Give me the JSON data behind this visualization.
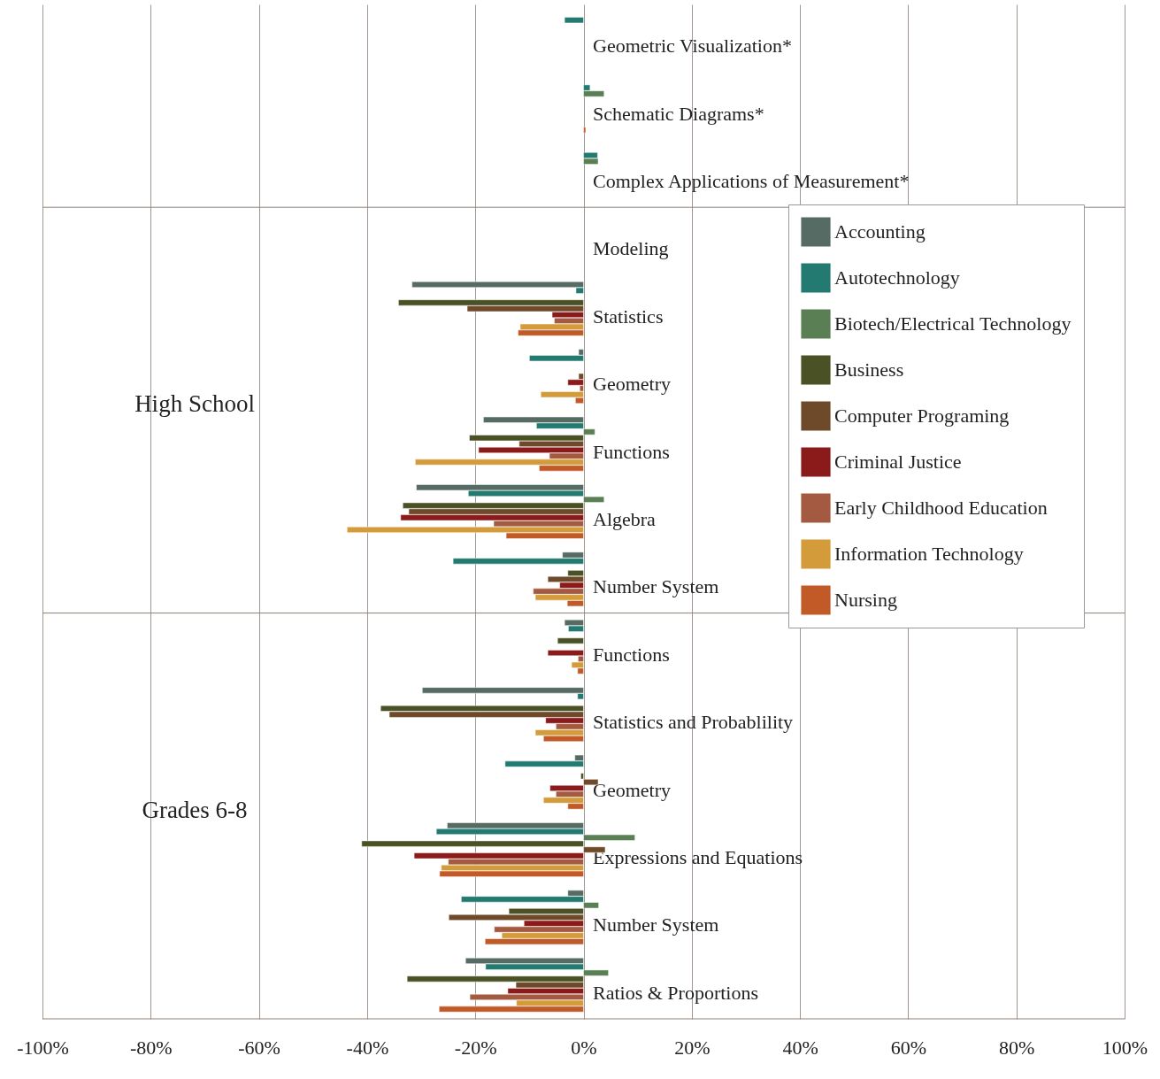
{
  "chart_data": {
    "type": "bar",
    "orientation": "horizontal",
    "categories": [
      "Geometric Visualization*",
      "Schematic Diagrams*",
      "Complex Applications of Measurement*",
      "Modeling",
      "Statistics",
      "Geometry",
      "Functions",
      "Algebra",
      "Number System",
      "Functions",
      "Statistics and Probablility",
      "Geometry",
      "Expressions and Equations",
      "Number System",
      "Ratios & Proportions"
    ],
    "series": [
      {
        "name": "Accounting",
        "color": "#566b63",
        "values": [
          null,
          null,
          null,
          null,
          -31.7,
          -0.9,
          -18.5,
          -30.9,
          -3.9,
          -3.5,
          -29.8,
          -1.6,
          -25.2,
          -2.9,
          -21.8
        ]
      },
      {
        "name": "Autotechnology",
        "color": "#237a70",
        "values": [
          -3.5,
          1.2,
          2.6,
          null,
          -1.4,
          -10.0,
          -8.7,
          -21.3,
          -24.1,
          -2.8,
          -1.1,
          -14.5,
          -27.2,
          -22.6,
          -18.1
        ]
      },
      {
        "name": "Biotech/Electrical Technology",
        "color": "#5a7f55",
        "values": [
          null,
          3.8,
          2.7,
          null,
          null,
          null,
          2.1,
          3.8,
          null,
          null,
          null,
          null,
          9.5,
          2.8,
          4.6
        ]
      },
      {
        "name": "Business",
        "color": "#4a5225",
        "values": [
          null,
          null,
          null,
          null,
          -34.2,
          null,
          -21.1,
          -33.4,
          -2.9,
          -4.8,
          -37.5,
          -0.5,
          -41.0,
          -13.8,
          -32.6
        ]
      },
      {
        "name": "Computer Programing",
        "color": "#6f4a2a",
        "values": [
          null,
          null,
          null,
          null,
          -21.5,
          -0.9,
          -11.9,
          -32.3,
          -6.6,
          null,
          -35.9,
          2.7,
          4.0,
          -24.9,
          -12.5
        ]
      },
      {
        "name": "Criminal Justice",
        "color": "#8b1a1a",
        "values": [
          null,
          null,
          null,
          null,
          -5.8,
          -2.9,
          -19.4,
          -33.8,
          -4.4,
          -6.6,
          -7.0,
          -6.2,
          -31.3,
          -11.0,
          -14.0
        ]
      },
      {
        "name": "Early Childhood Education",
        "color": "#a45a40",
        "values": [
          null,
          null,
          null,
          null,
          -5.4,
          -0.7,
          -6.3,
          -16.6,
          -9.3,
          -1.0,
          -5.1,
          -5.1,
          -25.0,
          -16.5,
          -21.0
        ]
      },
      {
        "name": "Information Technology",
        "color": "#d49b3a",
        "values": [
          null,
          null,
          null,
          null,
          -11.7,
          -7.9,
          -31.1,
          -43.7,
          -8.9,
          -2.2,
          -8.9,
          -7.4,
          -26.3,
          -15.1,
          -12.4
        ]
      },
      {
        "name": "Nursing",
        "color": "#c25a28",
        "values": [
          null,
          0.4,
          null,
          null,
          -12.1,
          -1.5,
          -8.2,
          -14.3,
          -3.0,
          -1.1,
          -7.4,
          -2.9,
          -26.6,
          -18.2,
          -26.7
        ]
      }
    ],
    "xlim": [
      -100,
      100
    ],
    "xticks": [
      {
        "value": -100,
        "label": "-100%"
      },
      {
        "value": -80,
        "label": "-80%"
      },
      {
        "value": -60,
        "label": "-60%"
      },
      {
        "value": -40,
        "label": "-40%"
      },
      {
        "value": -20,
        "label": "-20%"
      },
      {
        "value": 0,
        "label": "0%"
      },
      {
        "value": 20,
        "label": "20%"
      },
      {
        "value": 40,
        "label": "40%"
      },
      {
        "value": 60,
        "label": "60%"
      },
      {
        "value": 80,
        "label": "80%"
      },
      {
        "value": 100,
        "label": "100%"
      }
    ],
    "annotations": [
      "High School",
      "Grades 6-8"
    ],
    "grid": "x",
    "legend": "right"
  }
}
